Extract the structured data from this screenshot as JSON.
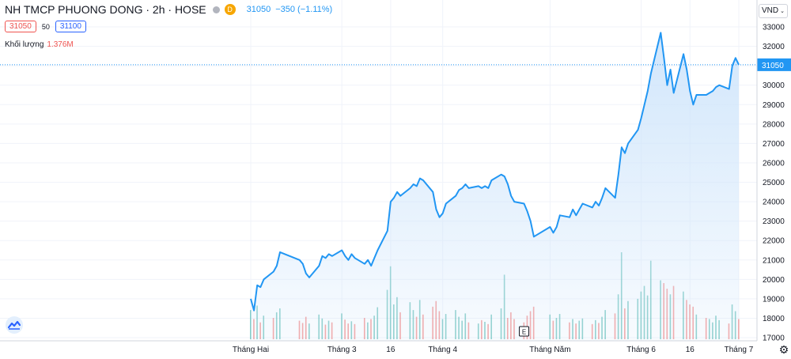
{
  "header": {
    "symbol": "NH TMCP PHUONG DONG · 2h · HOSE",
    "badge": "D",
    "last_price": "31050",
    "change": "−350 (−1.11%)",
    "bid": "31050",
    "spread": "50",
    "ask": "31100",
    "volume_label": "Khối lượng",
    "volume_value": "1.376M",
    "currency": "VND"
  },
  "icons": {
    "currency_dropdown": "chevron-down-icon",
    "logo": "tradingview-logo-icon",
    "settings": "gear-icon",
    "event_marker": "earnings-marker-icon"
  },
  "colors": {
    "line": "#2196f3",
    "area": "#cfe5fb",
    "vol_up": "#26a69a",
    "vol_down": "#ef5350",
    "grid": "#f0f3fa",
    "price_label": "#2196f3"
  },
  "event_marker": {
    "label": "E",
    "date": "2021-04-26"
  },
  "chart_data": {
    "type": "area",
    "title": "",
    "xlabel": "",
    "ylabel": "",
    "x_range": [
      "2021-02-01",
      "2021-07-02"
    ],
    "ylim": [
      17000,
      33500
    ],
    "y_ticks": [
      17000,
      18000,
      19000,
      20000,
      21000,
      22000,
      23000,
      24000,
      25000,
      26000,
      27000,
      28000,
      29000,
      30000,
      31000,
      32000,
      33000
    ],
    "x_tick_labels": [
      {
        "label": "Tháng Hai",
        "date": "2021-02-01"
      },
      {
        "label": "Tháng 3",
        "date": "2021-03-01"
      },
      {
        "label": "16",
        "date": "2021-03-16"
      },
      {
        "label": "Tháng 4",
        "date": "2021-04-01"
      },
      {
        "label": "Tháng Năm",
        "date": "2021-05-04"
      },
      {
        "label": "Tháng 6",
        "date": "2021-06-01"
      },
      {
        "label": "16",
        "date": "2021-06-16"
      },
      {
        "label": "Tháng 7",
        "date": "2021-07-01"
      }
    ],
    "current_price": 31050,
    "grid": true,
    "series": [
      {
        "points": [
          [
            "2021-02-01",
            19000
          ],
          [
            "2021-02-02",
            18400
          ],
          [
            "2021-02-03",
            19700
          ],
          [
            "2021-02-04",
            19600
          ],
          [
            "2021-02-05",
            20000
          ],
          [
            "2021-02-08",
            20400
          ],
          [
            "2021-02-09",
            20700
          ],
          [
            "2021-02-10",
            21400
          ],
          [
            "2021-02-16",
            21000
          ],
          [
            "2021-02-17",
            20800
          ],
          [
            "2021-02-18",
            20300
          ],
          [
            "2021-02-19",
            20100
          ],
          [
            "2021-02-22",
            20700
          ],
          [
            "2021-02-23",
            21200
          ],
          [
            "2021-02-24",
            21100
          ],
          [
            "2021-02-25",
            21300
          ],
          [
            "2021-02-26",
            21200
          ],
          [
            "2021-03-01",
            21500
          ],
          [
            "2021-03-02",
            21200
          ],
          [
            "2021-03-03",
            21000
          ],
          [
            "2021-03-04",
            21300
          ],
          [
            "2021-03-05",
            21100
          ],
          [
            "2021-03-08",
            20800
          ],
          [
            "2021-03-09",
            21000
          ],
          [
            "2021-03-10",
            20700
          ],
          [
            "2021-03-11",
            21100
          ],
          [
            "2021-03-12",
            21500
          ],
          [
            "2021-03-15",
            22500
          ],
          [
            "2021-03-16",
            24000
          ],
          [
            "2021-03-17",
            24200
          ],
          [
            "2021-03-18",
            24500
          ],
          [
            "2021-03-19",
            24300
          ],
          [
            "2021-03-22",
            24700
          ],
          [
            "2021-03-23",
            24900
          ],
          [
            "2021-03-24",
            24800
          ],
          [
            "2021-03-25",
            25200
          ],
          [
            "2021-03-26",
            25100
          ],
          [
            "2021-03-29",
            24500
          ],
          [
            "2021-03-30",
            23600
          ],
          [
            "2021-03-31",
            23200
          ],
          [
            "2021-04-01",
            23400
          ],
          [
            "2021-04-02",
            23900
          ],
          [
            "2021-04-05",
            24300
          ],
          [
            "2021-04-06",
            24600
          ],
          [
            "2021-04-07",
            24700
          ],
          [
            "2021-04-08",
            24900
          ],
          [
            "2021-04-09",
            24700
          ],
          [
            "2021-04-12",
            24800
          ],
          [
            "2021-04-13",
            24700
          ],
          [
            "2021-04-14",
            24800
          ],
          [
            "2021-04-15",
            24700
          ],
          [
            "2021-04-16",
            25100
          ],
          [
            "2021-04-19",
            25400
          ],
          [
            "2021-04-20",
            25300
          ],
          [
            "2021-04-21",
            24900
          ],
          [
            "2021-04-22",
            24300
          ],
          [
            "2021-04-23",
            24000
          ],
          [
            "2021-04-26",
            23900
          ],
          [
            "2021-04-27",
            23500
          ],
          [
            "2021-04-28",
            23000
          ],
          [
            "2021-04-29",
            22200
          ],
          [
            "2021-05-04",
            22700
          ],
          [
            "2021-05-05",
            22400
          ],
          [
            "2021-05-06",
            22700
          ],
          [
            "2021-05-07",
            23300
          ],
          [
            "2021-05-10",
            23200
          ],
          [
            "2021-05-11",
            23600
          ],
          [
            "2021-05-12",
            23300
          ],
          [
            "2021-05-13",
            23600
          ],
          [
            "2021-05-14",
            23900
          ],
          [
            "2021-05-17",
            23700
          ],
          [
            "2021-05-18",
            24000
          ],
          [
            "2021-05-19",
            23800
          ],
          [
            "2021-05-20",
            24200
          ],
          [
            "2021-05-21",
            24700
          ],
          [
            "2021-05-24",
            24200
          ],
          [
            "2021-05-25",
            25400
          ],
          [
            "2021-05-26",
            26800
          ],
          [
            "2021-05-27",
            26500
          ],
          [
            "2021-05-28",
            27000
          ],
          [
            "2021-05-31",
            27700
          ],
          [
            "2021-06-01",
            28300
          ],
          [
            "2021-06-02",
            29000
          ],
          [
            "2021-06-03",
            29700
          ],
          [
            "2021-06-04",
            30600
          ],
          [
            "2021-06-07",
            32700
          ],
          [
            "2021-06-08",
            31400
          ],
          [
            "2021-06-09",
            30000
          ],
          [
            "2021-06-10",
            30800
          ],
          [
            "2021-06-11",
            29600
          ],
          [
            "2021-06-14",
            31600
          ],
          [
            "2021-06-15",
            30800
          ],
          [
            "2021-06-16",
            29700
          ],
          [
            "2021-06-17",
            29000
          ],
          [
            "2021-06-18",
            29500
          ],
          [
            "2021-06-21",
            29500
          ],
          [
            "2021-06-22",
            29600
          ],
          [
            "2021-06-23",
            29700
          ],
          [
            "2021-06-24",
            29900
          ],
          [
            "2021-06-25",
            30000
          ],
          [
            "2021-06-28",
            29800
          ],
          [
            "2021-06-29",
            31000
          ],
          [
            "2021-06-30",
            31400
          ],
          [
            "2021-07-01",
            31050
          ]
        ]
      }
    ],
    "volume": [
      {
        "date": "2021-02-01",
        "v": 0.52,
        "up": true
      },
      {
        "date": "2021-02-02",
        "v": 0.36,
        "up": false
      },
      {
        "date": "2021-02-03",
        "v": 0.6,
        "up": true
      },
      {
        "date": "2021-02-04",
        "v": 0.3,
        "up": false
      },
      {
        "date": "2021-02-05",
        "v": 0.42,
        "up": true
      },
      {
        "date": "2021-02-08",
        "v": 0.38,
        "up": false
      },
      {
        "date": "2021-02-09",
        "v": 0.48,
        "up": true
      },
      {
        "date": "2021-02-10",
        "v": 0.55,
        "up": true
      },
      {
        "date": "2021-02-16",
        "v": 0.33,
        "up": false
      },
      {
        "date": "2021-02-17",
        "v": 0.29,
        "up": false
      },
      {
        "date": "2021-02-18",
        "v": 0.4,
        "up": false
      },
      {
        "date": "2021-02-19",
        "v": 0.28,
        "up": true
      },
      {
        "date": "2021-02-22",
        "v": 0.44,
        "up": true
      },
      {
        "date": "2021-02-23",
        "v": 0.37,
        "up": true
      },
      {
        "date": "2021-02-24",
        "v": 0.26,
        "up": false
      },
      {
        "date": "2021-02-25",
        "v": 0.33,
        "up": true
      },
      {
        "date": "2021-02-26",
        "v": 0.3,
        "up": false
      },
      {
        "date": "2021-03-01",
        "v": 0.46,
        "up": true
      },
      {
        "date": "2021-03-02",
        "v": 0.35,
        "up": false
      },
      {
        "date": "2021-03-03",
        "v": 0.28,
        "up": false
      },
      {
        "date": "2021-03-04",
        "v": 0.32,
        "up": true
      },
      {
        "date": "2021-03-05",
        "v": 0.27,
        "up": false
      },
      {
        "date": "2021-03-08",
        "v": 0.38,
        "up": false
      },
      {
        "date": "2021-03-09",
        "v": 0.3,
        "up": true
      },
      {
        "date": "2021-03-10",
        "v": 0.36,
        "up": false
      },
      {
        "date": "2021-03-11",
        "v": 0.42,
        "up": true
      },
      {
        "date": "2021-03-12",
        "v": 0.57,
        "up": true
      },
      {
        "date": "2021-03-15",
        "v": 0.88,
        "up": true
      },
      {
        "date": "2021-03-16",
        "v": 1.3,
        "up": true
      },
      {
        "date": "2021-03-17",
        "v": 0.62,
        "up": true
      },
      {
        "date": "2021-03-18",
        "v": 0.75,
        "up": true
      },
      {
        "date": "2021-03-19",
        "v": 0.48,
        "up": false
      },
      {
        "date": "2021-03-22",
        "v": 0.66,
        "up": true
      },
      {
        "date": "2021-03-23",
        "v": 0.52,
        "up": true
      },
      {
        "date": "2021-03-24",
        "v": 0.4,
        "up": false
      },
      {
        "date": "2021-03-25",
        "v": 0.7,
        "up": true
      },
      {
        "date": "2021-03-26",
        "v": 0.44,
        "up": false
      },
      {
        "date": "2021-03-29",
        "v": 0.58,
        "up": false
      },
      {
        "date": "2021-03-30",
        "v": 0.68,
        "up": false
      },
      {
        "date": "2021-03-31",
        "v": 0.5,
        "up": false
      },
      {
        "date": "2021-04-01",
        "v": 0.36,
        "up": true
      },
      {
        "date": "2021-04-02",
        "v": 0.45,
        "up": true
      },
      {
        "date": "2021-04-05",
        "v": 0.52,
        "up": true
      },
      {
        "date": "2021-04-06",
        "v": 0.4,
        "up": true
      },
      {
        "date": "2021-04-07",
        "v": 0.33,
        "up": true
      },
      {
        "date": "2021-04-08",
        "v": 0.46,
        "up": true
      },
      {
        "date": "2021-04-09",
        "v": 0.3,
        "up": false
      },
      {
        "date": "2021-04-12",
        "v": 0.28,
        "up": true
      },
      {
        "date": "2021-04-13",
        "v": 0.34,
        "up": false
      },
      {
        "date": "2021-04-14",
        "v": 0.31,
        "up": true
      },
      {
        "date": "2021-04-15",
        "v": 0.27,
        "up": false
      },
      {
        "date": "2021-04-16",
        "v": 0.44,
        "up": true
      },
      {
        "date": "2021-04-19",
        "v": 0.55,
        "up": true
      },
      {
        "date": "2021-04-20",
        "v": 1.15,
        "up": true
      },
      {
        "date": "2021-04-21",
        "v": 0.38,
        "up": false
      },
      {
        "date": "2021-04-22",
        "v": 0.48,
        "up": false
      },
      {
        "date": "2021-04-23",
        "v": 0.36,
        "up": false
      },
      {
        "date": "2021-04-26",
        "v": 0.3,
        "up": false
      },
      {
        "date": "2021-04-27",
        "v": 0.42,
        "up": false
      },
      {
        "date": "2021-04-28",
        "v": 0.5,
        "up": false
      },
      {
        "date": "2021-04-29",
        "v": 0.58,
        "up": false
      },
      {
        "date": "2021-05-04",
        "v": 0.44,
        "up": true
      },
      {
        "date": "2021-05-05",
        "v": 0.33,
        "up": false
      },
      {
        "date": "2021-05-06",
        "v": 0.38,
        "up": true
      },
      {
        "date": "2021-05-07",
        "v": 0.45,
        "up": true
      },
      {
        "date": "2021-05-10",
        "v": 0.3,
        "up": false
      },
      {
        "date": "2021-05-11",
        "v": 0.36,
        "up": true
      },
      {
        "date": "2021-05-12",
        "v": 0.28,
        "up": false
      },
      {
        "date": "2021-05-13",
        "v": 0.33,
        "up": true
      },
      {
        "date": "2021-05-14",
        "v": 0.37,
        "up": true
      },
      {
        "date": "2021-05-17",
        "v": 0.27,
        "up": false
      },
      {
        "date": "2021-05-18",
        "v": 0.34,
        "up": true
      },
      {
        "date": "2021-05-19",
        "v": 0.29,
        "up": false
      },
      {
        "date": "2021-05-20",
        "v": 0.4,
        "up": true
      },
      {
        "date": "2021-05-21",
        "v": 0.52,
        "up": true
      },
      {
        "date": "2021-05-24",
        "v": 0.46,
        "up": false
      },
      {
        "date": "2021-05-25",
        "v": 0.8,
        "up": true
      },
      {
        "date": "2021-05-26",
        "v": 1.55,
        "up": true
      },
      {
        "date": "2021-05-27",
        "v": 0.55,
        "up": false
      },
      {
        "date": "2021-05-28",
        "v": 0.68,
        "up": true
      },
      {
        "date": "2021-05-31",
        "v": 0.72,
        "up": true
      },
      {
        "date": "2021-06-01",
        "v": 0.85,
        "up": true
      },
      {
        "date": "2021-06-02",
        "v": 0.95,
        "up": true
      },
      {
        "date": "2021-06-03",
        "v": 0.78,
        "up": true
      },
      {
        "date": "2021-06-04",
        "v": 1.4,
        "up": true
      },
      {
        "date": "2021-06-07",
        "v": 1.05,
        "up": true
      },
      {
        "date": "2021-06-08",
        "v": 1.0,
        "up": false
      },
      {
        "date": "2021-06-09",
        "v": 0.9,
        "up": false
      },
      {
        "date": "2021-06-10",
        "v": 0.8,
        "up": true
      },
      {
        "date": "2021-06-11",
        "v": 0.95,
        "up": false
      },
      {
        "date": "2021-06-14",
        "v": 0.85,
        "up": true
      },
      {
        "date": "2021-06-15",
        "v": 0.7,
        "up": false
      },
      {
        "date": "2021-06-16",
        "v": 0.62,
        "up": false
      },
      {
        "date": "2021-06-17",
        "v": 0.58,
        "up": false
      },
      {
        "date": "2021-06-18",
        "v": 0.44,
        "up": true
      },
      {
        "date": "2021-06-21",
        "v": 0.38,
        "up": false
      },
      {
        "date": "2021-06-22",
        "v": 0.36,
        "up": true
      },
      {
        "date": "2021-06-23",
        "v": 0.3,
        "up": true
      },
      {
        "date": "2021-06-24",
        "v": 0.42,
        "up": true
      },
      {
        "date": "2021-06-25",
        "v": 0.34,
        "up": true
      },
      {
        "date": "2021-06-28",
        "v": 0.28,
        "up": false
      },
      {
        "date": "2021-06-29",
        "v": 0.62,
        "up": true
      },
      {
        "date": "2021-06-30",
        "v": 0.5,
        "up": true
      },
      {
        "date": "2021-07-01",
        "v": 0.36,
        "up": false
      }
    ]
  }
}
